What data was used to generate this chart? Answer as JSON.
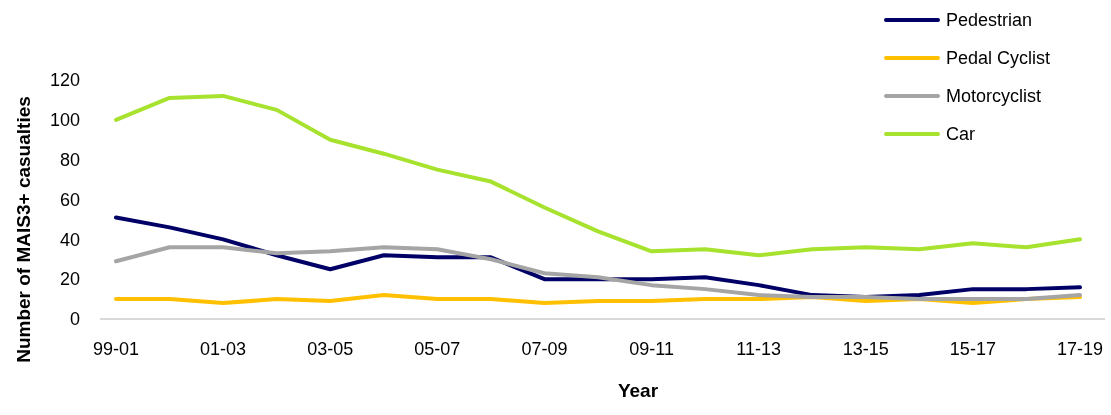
{
  "chart_data": {
    "type": "line",
    "xlabel": "Year",
    "ylabel": "Number of MAIS3+ casualties",
    "categories": [
      "99-01",
      null,
      "01-03",
      null,
      "03-05",
      null,
      "05-07",
      null,
      "07-09",
      null,
      "09-11",
      null,
      "11-13",
      null,
      "13-15",
      null,
      "15-17",
      null,
      "17-19"
    ],
    "series": [
      {
        "name": "Pedestrian",
        "color": "#000066",
        "values": [
          51,
          46,
          40,
          32,
          25,
          32,
          31,
          31,
          20,
          20,
          20,
          21,
          17,
          12,
          11,
          12,
          15,
          15,
          16
        ]
      },
      {
        "name": "Pedal Cyclist",
        "color": "#ffc000",
        "values": [
          10,
          10,
          8,
          10,
          9,
          12,
          10,
          10,
          8,
          9,
          9,
          10,
          10,
          11,
          9,
          10,
          8,
          10,
          11
        ]
      },
      {
        "name": "Motorcyclist",
        "color": "#a5a5a5",
        "values": [
          29,
          36,
          36,
          33,
          34,
          36,
          35,
          30,
          23,
          21,
          17,
          15,
          12,
          11,
          11,
          10,
          10,
          10,
          12
        ]
      },
      {
        "name": "Car",
        "color": "#a6e22e",
        "values": [
          100,
          111,
          112,
          105,
          90,
          83,
          75,
          69,
          56,
          44,
          34,
          35,
          32,
          35,
          36,
          35,
          38,
          36,
          40
        ]
      }
    ],
    "ylim": [
      0,
      120
    ],
    "yticks": [
      0,
      20,
      40,
      60,
      80,
      100,
      120
    ],
    "grid": false,
    "legend": "top right"
  }
}
